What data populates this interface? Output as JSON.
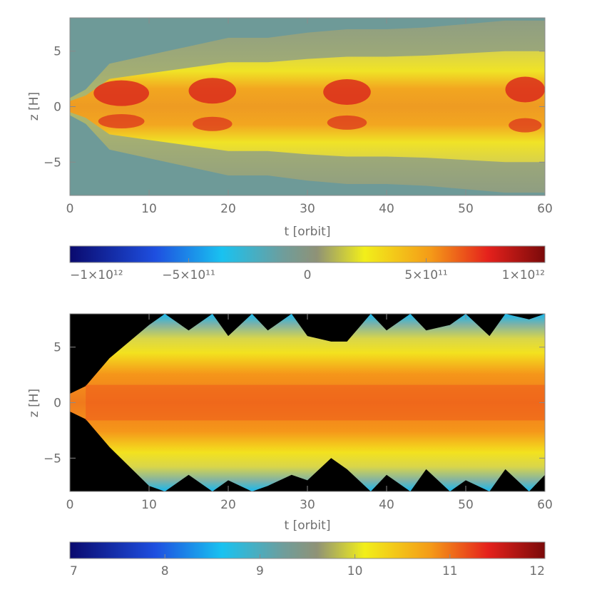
{
  "chart_data": [
    {
      "type": "heatmap",
      "panel": "top",
      "xlabel": "t [orbit]",
      "ylabel": "z [H]",
      "xlim": [
        0,
        60
      ],
      "ylim": [
        -8,
        8
      ],
      "x_ticks": [
        0,
        10,
        20,
        30,
        40,
        50,
        60
      ],
      "y_ticks": [
        -5,
        0,
        5
      ],
      "colormap": "blue-cyan-grey-yellow-red (diverging)",
      "background_value_color": "#6e9a98",
      "colorbar": {
        "range": [
          -1000000000000.0,
          1000000000000.0
        ],
        "tick_values": [
          -1000000000000.0,
          -500000000000.0,
          0,
          500000000000.0,
          1000000000000.0
        ],
        "tick_labels": [
          "−1×10¹²",
          "−5×10¹¹",
          "0",
          "5×10¹¹",
          "1×10¹²"
        ]
      },
      "envelope": {
        "t": [
          0,
          2,
          5,
          10,
          15,
          20,
          25,
          30,
          35,
          40,
          45,
          50,
          55,
          60
        ],
        "upper_z": [
          0.5,
          1.0,
          2.5,
          3.0,
          3.5,
          4.0,
          4.0,
          4.3,
          4.5,
          4.5,
          4.6,
          4.8,
          5.0,
          5.0
        ],
        "lower_z": [
          -0.5,
          -1.0,
          -2.5,
          -3.0,
          -3.5,
          -4.0,
          -4.0,
          -4.3,
          -4.5,
          -4.5,
          -4.6,
          -4.8,
          -5.0,
          -5.0
        ]
      }
    },
    {
      "type": "heatmap",
      "panel": "bottom",
      "xlabel": "t [orbit]",
      "ylabel": "z [H]",
      "xlim": [
        0,
        60
      ],
      "ylim": [
        -8,
        8
      ],
      "x_ticks": [
        0,
        10,
        20,
        30,
        40,
        50,
        60
      ],
      "y_ticks": [
        -5,
        0,
        5
      ],
      "colormap": "blue-cyan-grey-yellow-red (log scale)",
      "background_value_color": "#000000",
      "colorbar": {
        "range": [
          7,
          12
        ],
        "tick_values": [
          7,
          8,
          9,
          10,
          11,
          12
        ],
        "tick_labels": [
          "7",
          "8",
          "9",
          "10",
          "11",
          "12"
        ]
      },
      "envelope": {
        "t": [
          0,
          2,
          5,
          10,
          12,
          15,
          18,
          20,
          23,
          25,
          28,
          30,
          33,
          35,
          38,
          40,
          43,
          45,
          48,
          50,
          53,
          55,
          58,
          60
        ],
        "upper_z": [
          0.8,
          1.5,
          4.0,
          7.0,
          8.0,
          6.5,
          8.0,
          6.0,
          8.0,
          6.5,
          8.0,
          6.0,
          5.5,
          5.5,
          8.0,
          6.5,
          8.0,
          6.5,
          7.0,
          8.0,
          6.0,
          8.0,
          7.5,
          8.0
        ],
        "lower_z": [
          -0.8,
          -1.5,
          -4.0,
          -7.5,
          -8.0,
          -6.5,
          -8.0,
          -7.0,
          -8.0,
          -7.5,
          -6.5,
          -7.0,
          -5.0,
          -6.0,
          -8.0,
          -6.5,
          -8.0,
          -6.0,
          -8.0,
          -7.0,
          -8.0,
          -6.0,
          -8.0,
          -6.5
        ]
      }
    }
  ]
}
